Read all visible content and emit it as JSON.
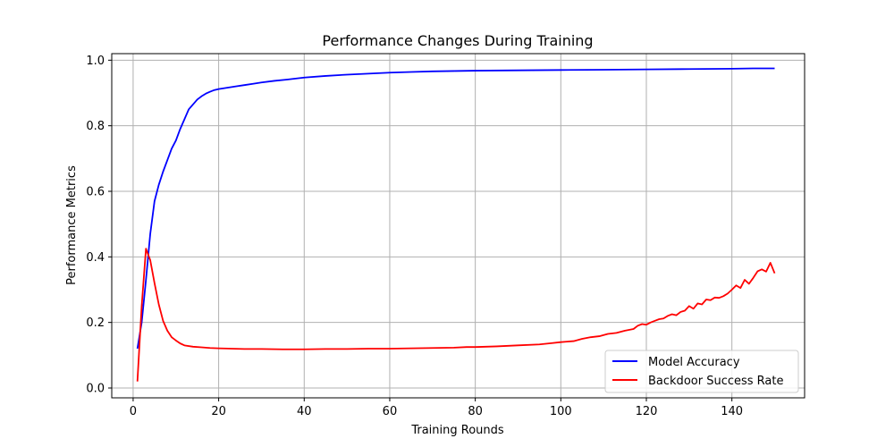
{
  "chart_data": {
    "type": "line",
    "title": "Performance Changes During Training",
    "xlabel": "Training Rounds",
    "ylabel": "Performance Metrics",
    "xlim": [
      -5,
      157
    ],
    "ylim": [
      -0.03,
      1.02
    ],
    "xticks": [
      0,
      20,
      40,
      60,
      80,
      100,
      120,
      140
    ],
    "yticks": [
      0.0,
      0.2,
      0.4,
      0.6,
      0.8,
      1.0
    ],
    "xtick_labels": [
      "0",
      "20",
      "40",
      "60",
      "80",
      "100",
      "120",
      "140"
    ],
    "ytick_labels": [
      "0.0",
      "0.2",
      "0.4",
      "0.6",
      "0.8",
      "1.0"
    ],
    "grid": true,
    "legend_position": "lower-right",
    "series": [
      {
        "name": "Model Accuracy",
        "color": "#0000ff",
        "points": [
          [
            1,
            0.12
          ],
          [
            2,
            0.2
          ],
          [
            3,
            0.33
          ],
          [
            4,
            0.47
          ],
          [
            5,
            0.57
          ],
          [
            6,
            0.62
          ],
          [
            7,
            0.66
          ],
          [
            8,
            0.695
          ],
          [
            9,
            0.73
          ],
          [
            10,
            0.755
          ],
          [
            11,
            0.79
          ],
          [
            12,
            0.82
          ],
          [
            13,
            0.85
          ],
          [
            14,
            0.865
          ],
          [
            15,
            0.88
          ],
          [
            16,
            0.89
          ],
          [
            17,
            0.898
          ],
          [
            18,
            0.904
          ],
          [
            19,
            0.909
          ],
          [
            20,
            0.912
          ],
          [
            22,
            0.916
          ],
          [
            24,
            0.92
          ],
          [
            26,
            0.924
          ],
          [
            28,
            0.928
          ],
          [
            30,
            0.932
          ],
          [
            33,
            0.937
          ],
          [
            36,
            0.941
          ],
          [
            40,
            0.947
          ],
          [
            45,
            0.952
          ],
          [
            50,
            0.956
          ],
          [
            55,
            0.959
          ],
          [
            60,
            0.962
          ],
          [
            65,
            0.964
          ],
          [
            70,
            0.966
          ],
          [
            75,
            0.967
          ],
          [
            80,
            0.968
          ],
          [
            90,
            0.969
          ],
          [
            100,
            0.97
          ],
          [
            110,
            0.971
          ],
          [
            120,
            0.972
          ],
          [
            130,
            0.973
          ],
          [
            140,
            0.974
          ],
          [
            145,
            0.975
          ],
          [
            150,
            0.975
          ]
        ]
      },
      {
        "name": "Backdoor Success Rate",
        "color": "#ff0000",
        "points": [
          [
            1,
            0.02
          ],
          [
            2,
            0.25
          ],
          [
            3,
            0.425
          ],
          [
            4,
            0.39
          ],
          [
            5,
            0.32
          ],
          [
            6,
            0.255
          ],
          [
            7,
            0.205
          ],
          [
            8,
            0.175
          ],
          [
            9,
            0.155
          ],
          [
            10,
            0.145
          ],
          [
            11,
            0.136
          ],
          [
            12,
            0.13
          ],
          [
            14,
            0.126
          ],
          [
            16,
            0.124
          ],
          [
            18,
            0.122
          ],
          [
            20,
            0.121
          ],
          [
            23,
            0.12
          ],
          [
            26,
            0.119
          ],
          [
            30,
            0.119
          ],
          [
            35,
            0.118
          ],
          [
            40,
            0.118
          ],
          [
            45,
            0.119
          ],
          [
            50,
            0.119
          ],
          [
            55,
            0.12
          ],
          [
            60,
            0.12
          ],
          [
            65,
            0.121
          ],
          [
            70,
            0.122
          ],
          [
            75,
            0.123
          ],
          [
            78,
            0.125
          ],
          [
            80,
            0.125
          ],
          [
            85,
            0.127
          ],
          [
            90,
            0.13
          ],
          [
            95,
            0.133
          ],
          [
            98,
            0.137
          ],
          [
            100,
            0.14
          ],
          [
            103,
            0.143
          ],
          [
            105,
            0.15
          ],
          [
            107,
            0.155
          ],
          [
            109,
            0.158
          ],
          [
            111,
            0.165
          ],
          [
            113,
            0.168
          ],
          [
            115,
            0.175
          ],
          [
            117,
            0.18
          ],
          [
            118,
            0.19
          ],
          [
            119,
            0.195
          ],
          [
            120,
            0.193
          ],
          [
            121,
            0.2
          ],
          [
            122,
            0.205
          ],
          [
            123,
            0.21
          ],
          [
            124,
            0.212
          ],
          [
            125,
            0.22
          ],
          [
            126,
            0.225
          ],
          [
            127,
            0.222
          ],
          [
            128,
            0.232
          ],
          [
            129,
            0.236
          ],
          [
            130,
            0.25
          ],
          [
            131,
            0.242
          ],
          [
            132,
            0.258
          ],
          [
            133,
            0.255
          ],
          [
            134,
            0.27
          ],
          [
            135,
            0.268
          ],
          [
            136,
            0.276
          ],
          [
            137,
            0.275
          ],
          [
            138,
            0.28
          ],
          [
            139,
            0.288
          ],
          [
            140,
            0.3
          ],
          [
            141,
            0.313
          ],
          [
            142,
            0.305
          ],
          [
            143,
            0.33
          ],
          [
            144,
            0.318
          ],
          [
            145,
            0.336
          ],
          [
            146,
            0.356
          ],
          [
            147,
            0.362
          ],
          [
            148,
            0.355
          ],
          [
            149,
            0.382
          ],
          [
            150,
            0.35
          ]
        ]
      }
    ]
  }
}
